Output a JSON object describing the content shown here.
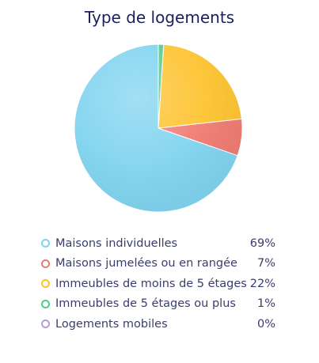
{
  "chart_data": {
    "type": "pie",
    "title": "Type de logements",
    "categories": [
      "Maisons individuelles",
      "Maisons jumelées ou en rangée",
      "Immeubles de moins de 5 étages",
      "Immeubles de 5 étages ou plus",
      "Logements mobiles"
    ],
    "values": [
      69,
      7,
      22,
      1,
      0
    ],
    "value_labels": [
      "69%",
      "7%",
      "22%",
      "1%",
      "0%"
    ],
    "colors": [
      "#7fd3ef",
      "#ef7a72",
      "#fdc22e",
      "#4ecb8f",
      "#b99bd6"
    ],
    "legend_position": "bottom"
  }
}
